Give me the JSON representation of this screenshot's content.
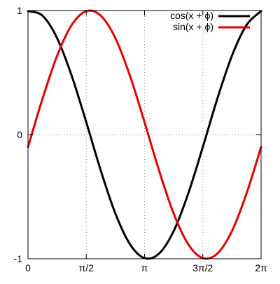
{
  "chart_data": {
    "type": "line",
    "x_tick_labels": [
      "0",
      "π/2",
      "π",
      "3π/2",
      "2π"
    ],
    "x_ticks": [
      0,
      1.5708,
      3.1416,
      4.7124,
      6.2832
    ],
    "y_tick_labels": [
      "-1",
      "0",
      "1"
    ],
    "y_ticks": [
      -1,
      0,
      1
    ],
    "xlim": [
      0,
      6.2832
    ],
    "ylim": [
      -1,
      1
    ],
    "grid": true,
    "legend_position": "top-right",
    "series": [
      {
        "name": "cos(x + ϕ)",
        "color": "#000000",
        "x": [
          0,
          0.3927,
          0.7854,
          1.1781,
          1.5708,
          1.9635,
          2.3562,
          2.7489,
          3.1416,
          3.5343,
          3.927,
          4.3197,
          4.7124,
          5.1051,
          5.4978,
          5.8905,
          6.2832
        ],
        "y": [
          0.995,
          0.958,
          0.777,
          0.474,
          0.1,
          -0.291,
          -0.636,
          -0.883,
          -0.995,
          -0.958,
          -0.777,
          -0.474,
          -0.1,
          0.291,
          0.636,
          0.883,
          0.995
        ]
      },
      {
        "name": "sin(x + ϕ)",
        "color": "#e00000",
        "x": [
          0,
          0.3927,
          0.7854,
          1.1781,
          1.5708,
          1.9635,
          2.3562,
          2.7489,
          3.1416,
          3.5343,
          3.927,
          4.3197,
          4.7124,
          5.1051,
          5.4978,
          5.8905,
          6.2832
        ],
        "y": [
          -0.1,
          0.291,
          0.636,
          0.883,
          0.995,
          0.958,
          0.777,
          0.474,
          0.1,
          -0.291,
          -0.636,
          -0.883,
          -0.995,
          -0.958,
          -0.777,
          -0.474,
          -0.1
        ]
      }
    ]
  }
}
